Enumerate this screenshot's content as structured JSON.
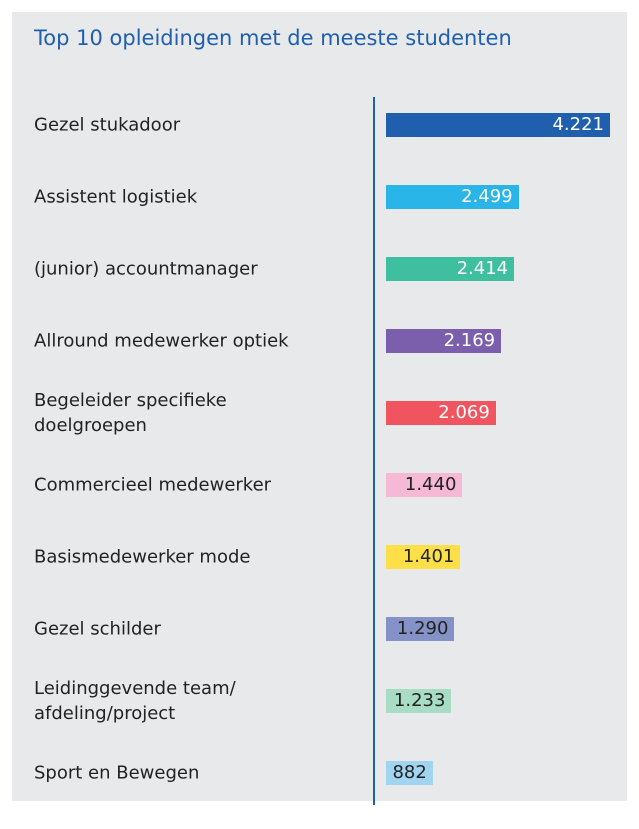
{
  "chart_data": {
    "type": "bar",
    "orientation": "horizontal",
    "title": "Top 10 opleidingen met de meeste studenten",
    "categories": [
      "Gezel stukadoor",
      "Assistent logistiek",
      "(junior) accountmanager",
      "Allround medewerker optiek",
      "Begeleider specifieke\ndoelgroepen",
      "Commercieel medewerker",
      "Basismedewerker mode",
      "Gezel schilder",
      "Leidinggevende team/\nafdeling/project",
      "Sport en Bewegen"
    ],
    "values": [
      4221,
      2499,
      2414,
      2169,
      2069,
      1440,
      1401,
      1290,
      1233,
      882
    ],
    "value_labels": [
      "4.221",
      "2.499",
      "2.414",
      "2.169",
      "2.069",
      "1.440",
      "1.401",
      "1.290",
      "1.233",
      "882"
    ],
    "colors": [
      "#1f5fad",
      "#29b5e8",
      "#3dbfa0",
      "#7b5fad",
      "#f0555f",
      "#f5b8d5",
      "#fde047",
      "#8592c8",
      "#a8dcc4",
      "#a0d4f0"
    ],
    "label_colors": [
      "#ffffff",
      "#ffffff",
      "#ffffff",
      "#ffffff",
      "#ffffff",
      "#222222",
      "#222222",
      "#222222",
      "#222222",
      "#222222"
    ]
  }
}
